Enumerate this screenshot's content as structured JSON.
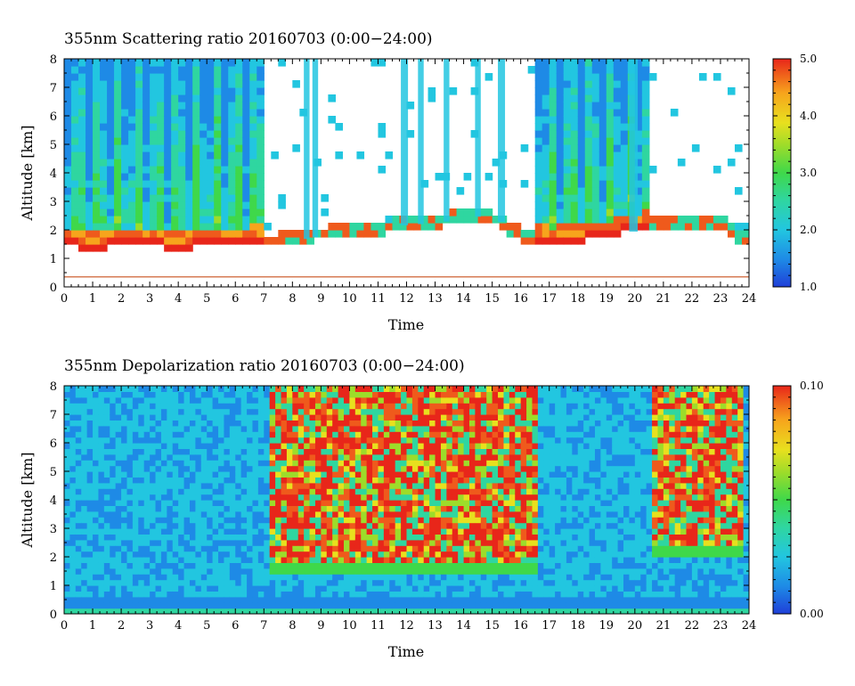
{
  "chart_data": [
    {
      "type": "heatmap",
      "title": "355nm Scattering ratio  20160703 (0:00−24:00)",
      "xlabel": "Time",
      "ylabel": "Altitude [km]",
      "xlim": [
        0,
        24
      ],
      "ylim": [
        0,
        8
      ],
      "x_ticks": [
        "0",
        "1",
        "2",
        "3",
        "4",
        "5",
        "6",
        "7",
        "8",
        "9",
        "10",
        "11",
        "12",
        "13",
        "14",
        "15",
        "16",
        "17",
        "18",
        "19",
        "20",
        "21",
        "22",
        "23",
        "24"
      ],
      "y_ticks": [
        "0",
        "1",
        "2",
        "3",
        "4",
        "5",
        "6",
        "7",
        "8"
      ],
      "colorbar": {
        "min": 1.0,
        "max": 5.0,
        "labels": [
          "5.0",
          "4.0",
          "3.0",
          "2.0",
          "1.0"
        ]
      },
      "cloud_base_km": [
        [
          0,
          1.4
        ],
        [
          1,
          1.35
        ],
        [
          2,
          1.4
        ],
        [
          3,
          1.4
        ],
        [
          4,
          1.35
        ],
        [
          5,
          1.4
        ],
        [
          6,
          1.5
        ],
        [
          7,
          1.55
        ],
        [
          8,
          1.6
        ],
        [
          9,
          1.8
        ],
        [
          10,
          1.9
        ],
        [
          11,
          2.0
        ],
        [
          12,
          2.2
        ],
        [
          13,
          2.2
        ],
        [
          14,
          2.5
        ],
        [
          15,
          2.4
        ],
        [
          16,
          1.8
        ],
        [
          17,
          1.5
        ],
        [
          18,
          1.6
        ],
        [
          19,
          1.7
        ],
        [
          20,
          2.0
        ],
        [
          21,
          2.2
        ],
        [
          22,
          2.2
        ],
        [
          23,
          2.2
        ],
        [
          24,
          1.5
        ]
      ],
      "reference_line_km": 0.35
    },
    {
      "type": "heatmap",
      "title": "355nm Depolarization ratio  20160703 (0:00−24:00)",
      "xlabel": "Time",
      "ylabel": "Altitude [km]",
      "xlim": [
        0,
        24
      ],
      "ylim": [
        0,
        8
      ],
      "x_ticks": [
        "0",
        "1",
        "2",
        "3",
        "4",
        "5",
        "6",
        "7",
        "8",
        "9",
        "10",
        "11",
        "12",
        "13",
        "14",
        "15",
        "16",
        "17",
        "18",
        "19",
        "20",
        "21",
        "22",
        "23",
        "24"
      ],
      "y_ticks": [
        "0",
        "1",
        "2",
        "3",
        "4",
        "5",
        "6",
        "7",
        "8"
      ],
      "colorbar": {
        "min": 0.0,
        "max": 0.1,
        "labels": [
          "0.10",
          "0.00"
        ]
      },
      "high_depol_regions": [
        {
          "time": [
            7.2,
            16.5
          ],
          "altitude_km": [
            1.5,
            8
          ]
        },
        {
          "time": [
            20.6,
            23.8
          ],
          "altitude_km": [
            2.0,
            8
          ]
        }
      ]
    }
  ],
  "colors": {
    "scale": [
      "#1f3fd8",
      "#1e8ae6",
      "#22c6e0",
      "#2fd6a0",
      "#3fd84a",
      "#9ddc2a",
      "#e8e01e",
      "#f7a41c",
      "#ef5a1c",
      "#e8261a"
    ],
    "frame": "#000000",
    "reference_line": "#c8501e"
  }
}
